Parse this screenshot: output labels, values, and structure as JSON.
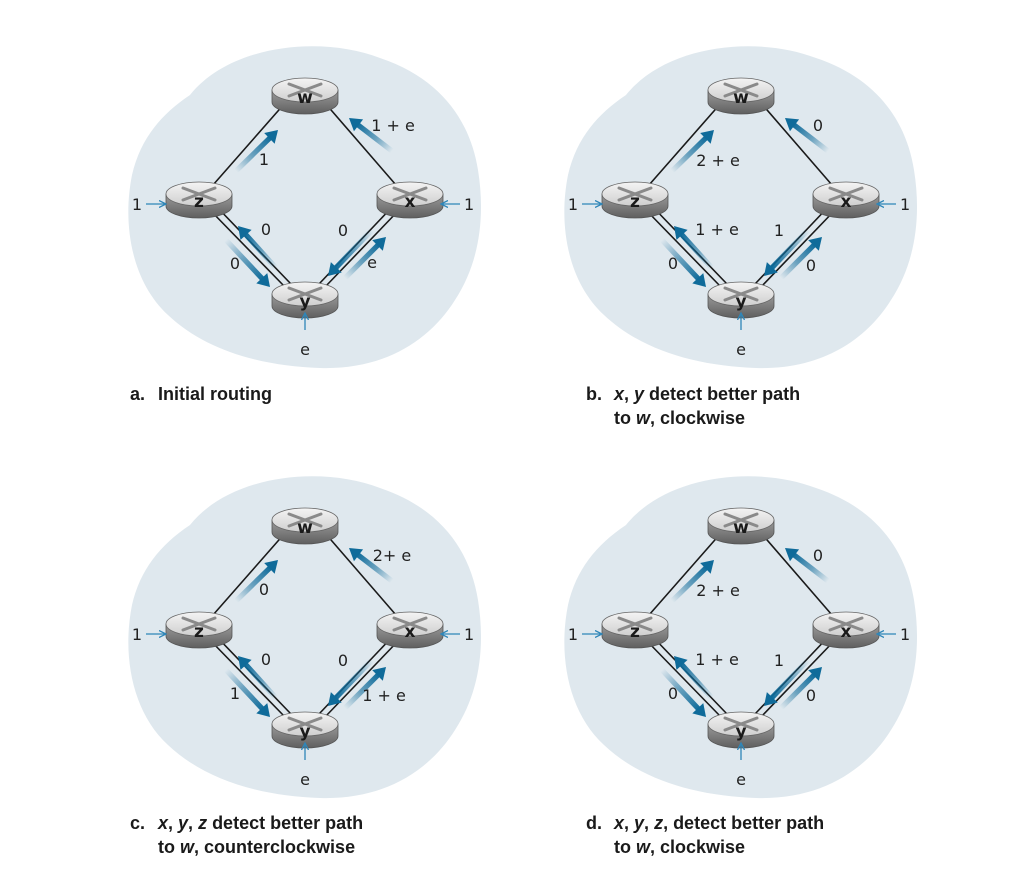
{
  "panels": [
    {
      "id": "a",
      "caption": {
        "letter": "a.",
        "line1": [
          {
            "t": "Initial routing",
            "i": false
          }
        ],
        "line2": []
      },
      "routers": {
        "w": "w",
        "x": "x",
        "y": "y",
        "z": "z"
      },
      "inputs": {
        "z": "1",
        "x": "1",
        "y": "e"
      },
      "flows": {
        "zw": "1",
        "xw": "1 + e",
        "yz": "0",
        "zy": "0",
        "yx": "e",
        "xy": "0"
      },
      "directions": {
        "zw": "up",
        "xw": "up",
        "yz": "up",
        "zy": "down",
        "yx": "up",
        "xy": "down"
      }
    },
    {
      "id": "b",
      "caption": {
        "letter": "b.",
        "line1": [
          {
            "t": "x",
            "i": true
          },
          {
            "t": ", ",
            "i": false
          },
          {
            "t": "y",
            "i": true
          },
          {
            "t": " detect better path",
            "i": false
          }
        ],
        "line2": [
          {
            "t": "to ",
            "i": false
          },
          {
            "t": "w",
            "i": true
          },
          {
            "t": ", clockwise",
            "i": false
          }
        ]
      },
      "routers": {
        "w": "w",
        "x": "x",
        "y": "y",
        "z": "z"
      },
      "inputs": {
        "z": "1",
        "x": "1",
        "y": "e"
      },
      "flows": {
        "zw": "2 + e",
        "xw": "0",
        "yz": "1 + e",
        "zy": "0",
        "yx": "0",
        "xy": "1"
      }
    },
    {
      "id": "c",
      "caption": {
        "letter": "c.",
        "line1": [
          {
            "t": "x",
            "i": true
          },
          {
            "t": ", ",
            "i": false
          },
          {
            "t": "y",
            "i": true
          },
          {
            "t": ", ",
            "i": false
          },
          {
            "t": "z",
            "i": true
          },
          {
            "t": " detect better path",
            "i": false
          }
        ],
        "line2": [
          {
            "t": "to ",
            "i": false
          },
          {
            "t": "w",
            "i": true
          },
          {
            "t": ", counterclockwise",
            "i": false
          }
        ]
      },
      "routers": {
        "w": "w",
        "x": "x",
        "y": "y",
        "z": "z"
      },
      "inputs": {
        "z": "1",
        "x": "1",
        "y": "e"
      },
      "flows": {
        "zw": "0",
        "xw": "2+ e",
        "yz": "0",
        "zy": "1",
        "yx": "1 + e",
        "xy": "0"
      }
    },
    {
      "id": "d",
      "caption": {
        "letter": "d.",
        "line1": [
          {
            "t": "x",
            "i": true
          },
          {
            "t": ", ",
            "i": false
          },
          {
            "t": "y",
            "i": true
          },
          {
            "t": ", ",
            "i": false
          },
          {
            "t": "z",
            "i": true
          },
          {
            "t": ", detect better path",
            "i": false
          }
        ],
        "line2": [
          {
            "t": "to ",
            "i": false
          },
          {
            "t": "w",
            "i": true
          },
          {
            "t": ", clockwise",
            "i": false
          }
        ]
      },
      "routers": {
        "w": "w",
        "x": "x",
        "y": "y",
        "z": "z"
      },
      "inputs": {
        "z": "1",
        "x": "1",
        "y": "e"
      },
      "flows": {
        "zw": "2 + e",
        "xw": "0",
        "yz": "1 + e",
        "zy": "0",
        "yx": "0",
        "xy": "1"
      }
    }
  ],
  "colors": {
    "cloud": "#dfe8ee",
    "arrow": "#0f6b9a",
    "input_arrow": "#2f86b8",
    "router_top": "#e9e9e9",
    "router_side": "#7d7d7d",
    "link": "#1a1a1a"
  }
}
